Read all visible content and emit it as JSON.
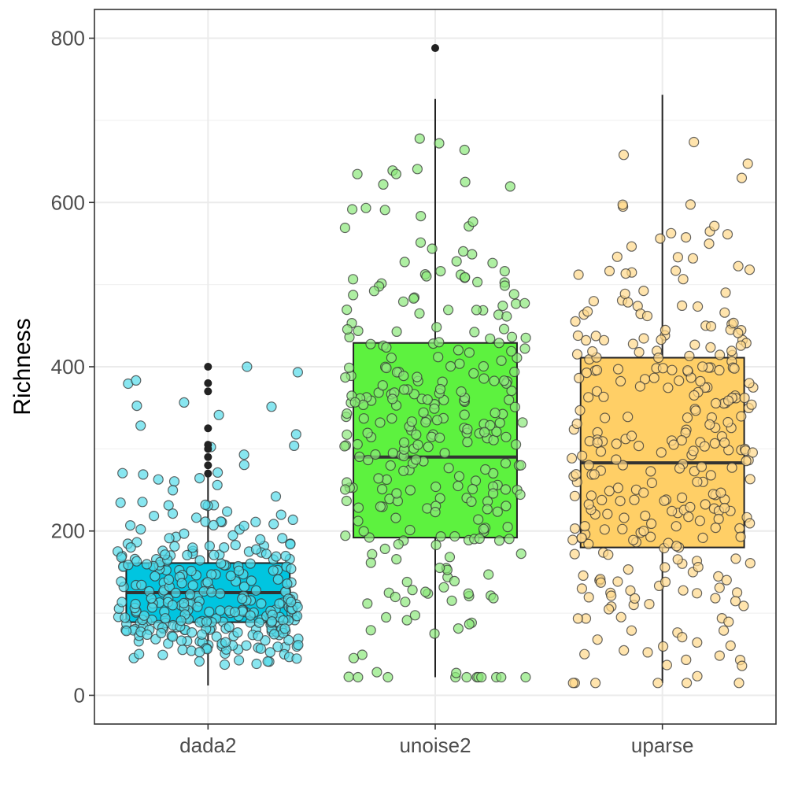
{
  "chart_data": {
    "type": "boxplot",
    "title": "",
    "xlabel": "",
    "ylabel": "Richness",
    "ylim": [
      -35,
      835
    ],
    "yticks": [
      0,
      200,
      400,
      600,
      800
    ],
    "grid": true,
    "legend": "none",
    "categories": [
      "dada2",
      "unoise2",
      "uparse"
    ],
    "series": [
      {
        "name": "dada2",
        "color": "#00c5e0",
        "point_color": "#55dce9",
        "box": {
          "whisker_low": 12,
          "q1": 89,
          "median": 125,
          "q3": 161,
          "whisker_high": 268
        },
        "outliers": [
          270,
          280,
          290,
          300,
          305,
          325,
          370,
          380,
          400
        ],
        "jitter_count": 330,
        "jitter_seed": 11,
        "jitter_model": "lognormal",
        "jitter_params": [
          125,
          0.48,
          12,
          400
        ]
      },
      {
        "name": "unoise2",
        "color": "#5df23f",
        "point_color": "#8be87a",
        "box": {
          "whisker_low": 22,
          "q1": 192,
          "median": 290,
          "q3": 429,
          "whisker_high": 726
        },
        "outliers": [
          788
        ],
        "jitter_count": 300,
        "jitter_seed": 23,
        "jitter_model": "normal",
        "jitter_params": [
          310,
          150,
          22,
          788
        ]
      },
      {
        "name": "uparse",
        "color": "#ffcf66",
        "point_color": "#ffd98a",
        "box": {
          "whisker_low": 15,
          "q1": 180,
          "median": 283,
          "q3": 411,
          "whisker_high": 731
        },
        "outliers": [],
        "jitter_count": 310,
        "jitter_seed": 37,
        "jitter_model": "normal",
        "jitter_params": [
          300,
          145,
          15,
          731
        ]
      }
    ]
  }
}
